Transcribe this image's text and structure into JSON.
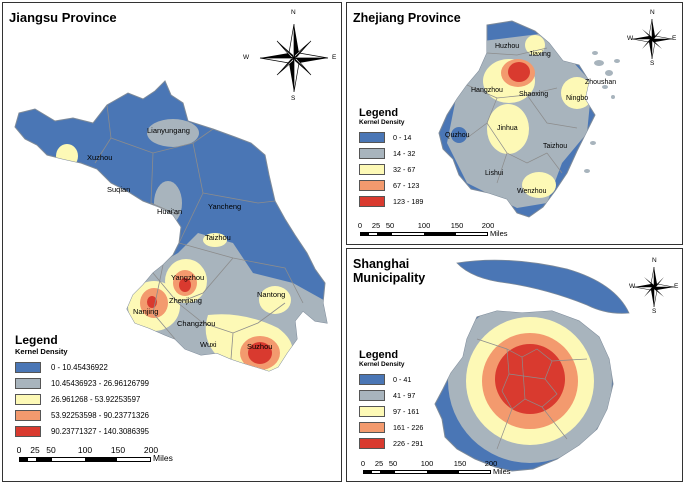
{
  "colors": {
    "class1": "#4a76b5",
    "class2": "#a8b4bd",
    "class3": "#fdf9b6",
    "class4": "#f39a6e",
    "class5": "#d93a2f",
    "boundary": "#8c8c8c"
  },
  "jiangsu": {
    "title": "Jiangsu Province",
    "legend_title": "Legend",
    "legend_subtitle": "Kernel Density",
    "legend_items": [
      "0 - 10.45436922",
      "10.45436923 - 26.96126799",
      "26.961268 - 53.92253597",
      "53.92253598 - 90.23771326",
      "90.23771327 - 140.3086395"
    ],
    "cities": [
      "Lianyungang",
      "Xuzhou",
      "Suqian",
      "Huai'an",
      "Yancheng",
      "Taizhou",
      "Yangzhou",
      "Zhenjiang",
      "Nanjing",
      "Nantong",
      "Changzhou",
      "Wuxi",
      "Suzhou"
    ],
    "scale_labels": [
      "0",
      "25",
      "50",
      "100",
      "150",
      "200"
    ],
    "scale_units": "Miles",
    "compass": {
      "n": "N",
      "s": "S",
      "e": "E",
      "w": "W"
    }
  },
  "zhejiang": {
    "title": "Zhejiang Province",
    "legend_title": "Legend",
    "legend_subtitle": "Kernel Density",
    "legend_items": [
      "0 - 14",
      "14 - 32",
      "32 - 67",
      "67 - 123",
      "123 - 189"
    ],
    "cities": [
      "Huzhou",
      "Jiaxing",
      "Hangzhou",
      "Shaoxing",
      "Ningbo",
      "Zhoushan",
      "Quzhou",
      "Jinhua",
      "Taizhou",
      "Lishui",
      "Wenzhou"
    ],
    "scale_labels": [
      "0",
      "25",
      "50",
      "100",
      "150",
      "200"
    ],
    "scale_units": "Miles",
    "compass": {
      "n": "N",
      "s": "S",
      "e": "E",
      "w": "W"
    }
  },
  "shanghai": {
    "title_line1": "Shanghai",
    "title_line2": "Municipality",
    "legend_title": "Legend",
    "legend_subtitle": "Kernel Density",
    "legend_items": [
      "0 - 41",
      "41 - 97",
      "97 - 161",
      "161 - 226",
      "226 - 291"
    ],
    "scale_labels": [
      "0",
      "25",
      "50",
      "100",
      "150",
      "200"
    ],
    "scale_units": "Miles",
    "compass": {
      "n": "N",
      "s": "S",
      "e": "E",
      "w": "W"
    }
  }
}
